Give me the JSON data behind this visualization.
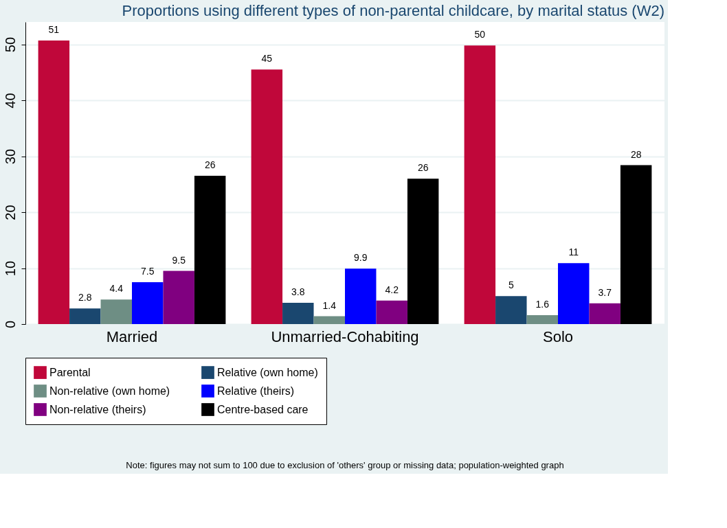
{
  "chart_data": {
    "type": "bar",
    "title": "Proportions using different types of non-parental childcare, by marital status (W2)",
    "categories": [
      "Married",
      "Unmarried-Cohabiting",
      "Solo"
    ],
    "series": [
      {
        "name": "Parental",
        "color": "#c0073a",
        "values": [
          50.7,
          45.5,
          49.8
        ],
        "value_labels": [
          "51",
          "45",
          "50"
        ]
      },
      {
        "name": "Relative (own home)",
        "color": "#1a476f",
        "values": [
          2.8,
          3.8,
          5.0
        ],
        "value_labels": [
          "2.8",
          "3.8",
          "5"
        ]
      },
      {
        "name": "Non-relative (own home)",
        "color": "#6e8e84",
        "values": [
          4.4,
          1.4,
          1.6
        ],
        "value_labels": [
          "4.4",
          "1.4",
          "1.6"
        ]
      },
      {
        "name": "Relative (theirs)",
        "color": "#0000ff",
        "values": [
          7.5,
          9.9,
          10.9
        ],
        "value_labels": [
          "7.5",
          "9.9",
          "11"
        ]
      },
      {
        "name": "Non-relative (theirs)",
        "color": "#800080",
        "values": [
          9.5,
          4.2,
          3.7
        ],
        "value_labels": [
          "9.5",
          "4.2",
          "3.7"
        ]
      },
      {
        "name": "Centre-based care",
        "color": "#000000",
        "values": [
          26.5,
          26.0,
          28.4
        ],
        "value_labels": [
          "26",
          "26",
          "28"
        ]
      }
    ],
    "ylim": [
      0,
      54
    ],
    "yticks": [
      0,
      10,
      20,
      30,
      40,
      50
    ],
    "grid": "y",
    "legend": "bottom",
    "annotations": [
      "Note: figures may not sum to 100 due to exclusion of 'others' group or missing data; population-weighted graph"
    ]
  }
}
